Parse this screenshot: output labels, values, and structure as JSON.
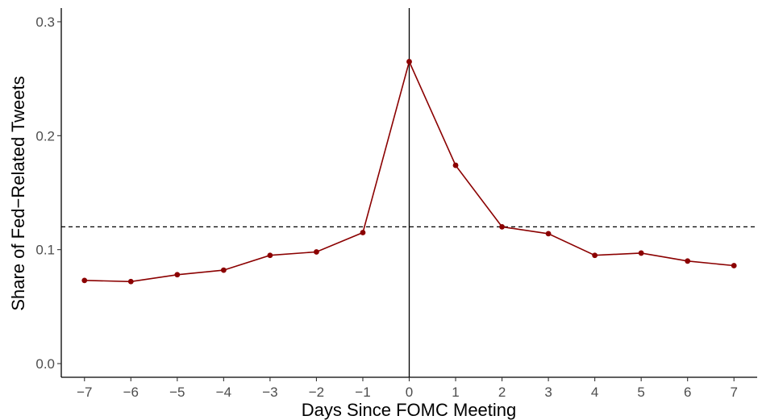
{
  "chart_data": {
    "type": "line",
    "xlabel": "Days Since FOMC Meeting",
    "ylabel": "Share of Fed−Related Tweets",
    "x": [
      -7,
      -6,
      -5,
      -4,
      -3,
      -2,
      -1,
      0,
      1,
      2,
      3,
      4,
      5,
      6,
      7
    ],
    "xlim": [
      -7.5,
      7.5
    ],
    "ylim": [
      -0.012,
      0.312
    ],
    "x_ticks": [
      -7,
      -6,
      -5,
      -4,
      -3,
      -2,
      -1,
      0,
      1,
      2,
      3,
      4,
      5,
      6,
      7
    ],
    "x_tick_labels": [
      "−7",
      "−6",
      "−5",
      "−4",
      "−3",
      "−2",
      "−1",
      "0",
      "1",
      "2",
      "3",
      "4",
      "5",
      "6",
      "7"
    ],
    "y_ticks": [
      0.0,
      0.1,
      0.2,
      0.3
    ],
    "y_tick_labels": [
      "0.0",
      "0.1",
      "0.2",
      "0.3"
    ],
    "series": [
      {
        "values": [
          0.073,
          0.072,
          0.078,
          0.082,
          0.095,
          0.098,
          0.115,
          0.265,
          0.174,
          0.12,
          0.114,
          0.095,
          0.097,
          0.09,
          0.086
        ],
        "color": "#8b0000"
      }
    ],
    "reference_lines": {
      "vertical_x": 0,
      "horizontal_dashed_y": 0.12
    },
    "grid": false,
    "legend": "none"
  }
}
